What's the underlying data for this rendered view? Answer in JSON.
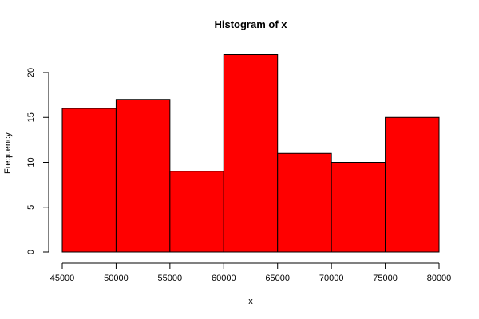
{
  "chart_data": {
    "type": "bar",
    "title": "Histogram of x",
    "xlabel": "x",
    "ylabel": "Frequency",
    "bins": [
      {
        "from": 45000,
        "to": 50000,
        "count": 16
      },
      {
        "from": 50000,
        "to": 55000,
        "count": 17
      },
      {
        "from": 55000,
        "to": 60000,
        "count": 9
      },
      {
        "from": 60000,
        "to": 65000,
        "count": 22
      },
      {
        "from": 65000,
        "to": 70000,
        "count": 11
      },
      {
        "from": 70000,
        "to": 75000,
        "count": 10
      },
      {
        "from": 75000,
        "to": 80000,
        "count": 15
      }
    ],
    "xticks": [
      45000,
      50000,
      55000,
      60000,
      65000,
      70000,
      75000,
      80000
    ],
    "yticks": [
      0,
      5,
      10,
      15,
      20
    ],
    "xlim": [
      45000,
      80000
    ],
    "ylim": [
      0,
      22
    ],
    "bar_color": "#ff0000",
    "grid": false
  }
}
